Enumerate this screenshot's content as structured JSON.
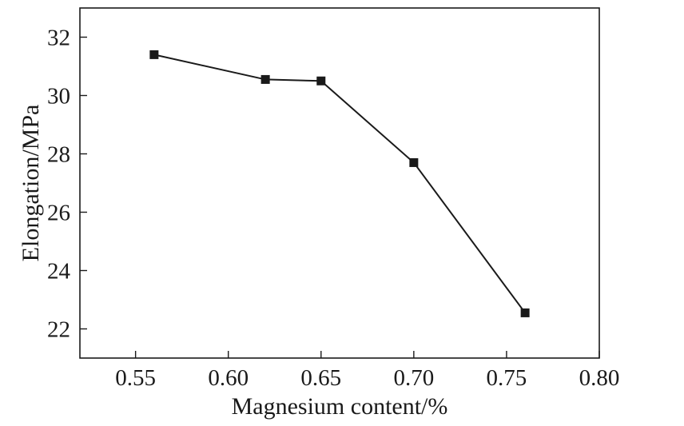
{
  "chart_data": {
    "type": "line",
    "title": "",
    "xlabel": "Magnesium content/%",
    "ylabel": "Elongation/MPa",
    "xlim": [
      0.52,
      0.8
    ],
    "ylim": [
      21.0,
      33.0
    ],
    "x_ticks": [
      0.55,
      0.6,
      0.65,
      0.7,
      0.75,
      0.8
    ],
    "x_tick_labels": [
      "0.55",
      "0.60",
      "0.65",
      "0.70",
      "0.75",
      "0.80"
    ],
    "y_ticks": [
      22,
      24,
      26,
      28,
      30,
      32
    ],
    "y_tick_labels": [
      "22",
      "24",
      "26",
      "28",
      "30",
      "32"
    ],
    "grid": false,
    "legend": false,
    "marker": "square",
    "series": [
      {
        "x": [
          0.56,
          0.62,
          0.65,
          0.7,
          0.76
        ],
        "values": [
          31.4,
          30.55,
          30.5,
          27.7,
          22.55
        ]
      }
    ],
    "colors": {
      "line": "#1a1a1a",
      "marker": "#1a1a1a"
    }
  }
}
